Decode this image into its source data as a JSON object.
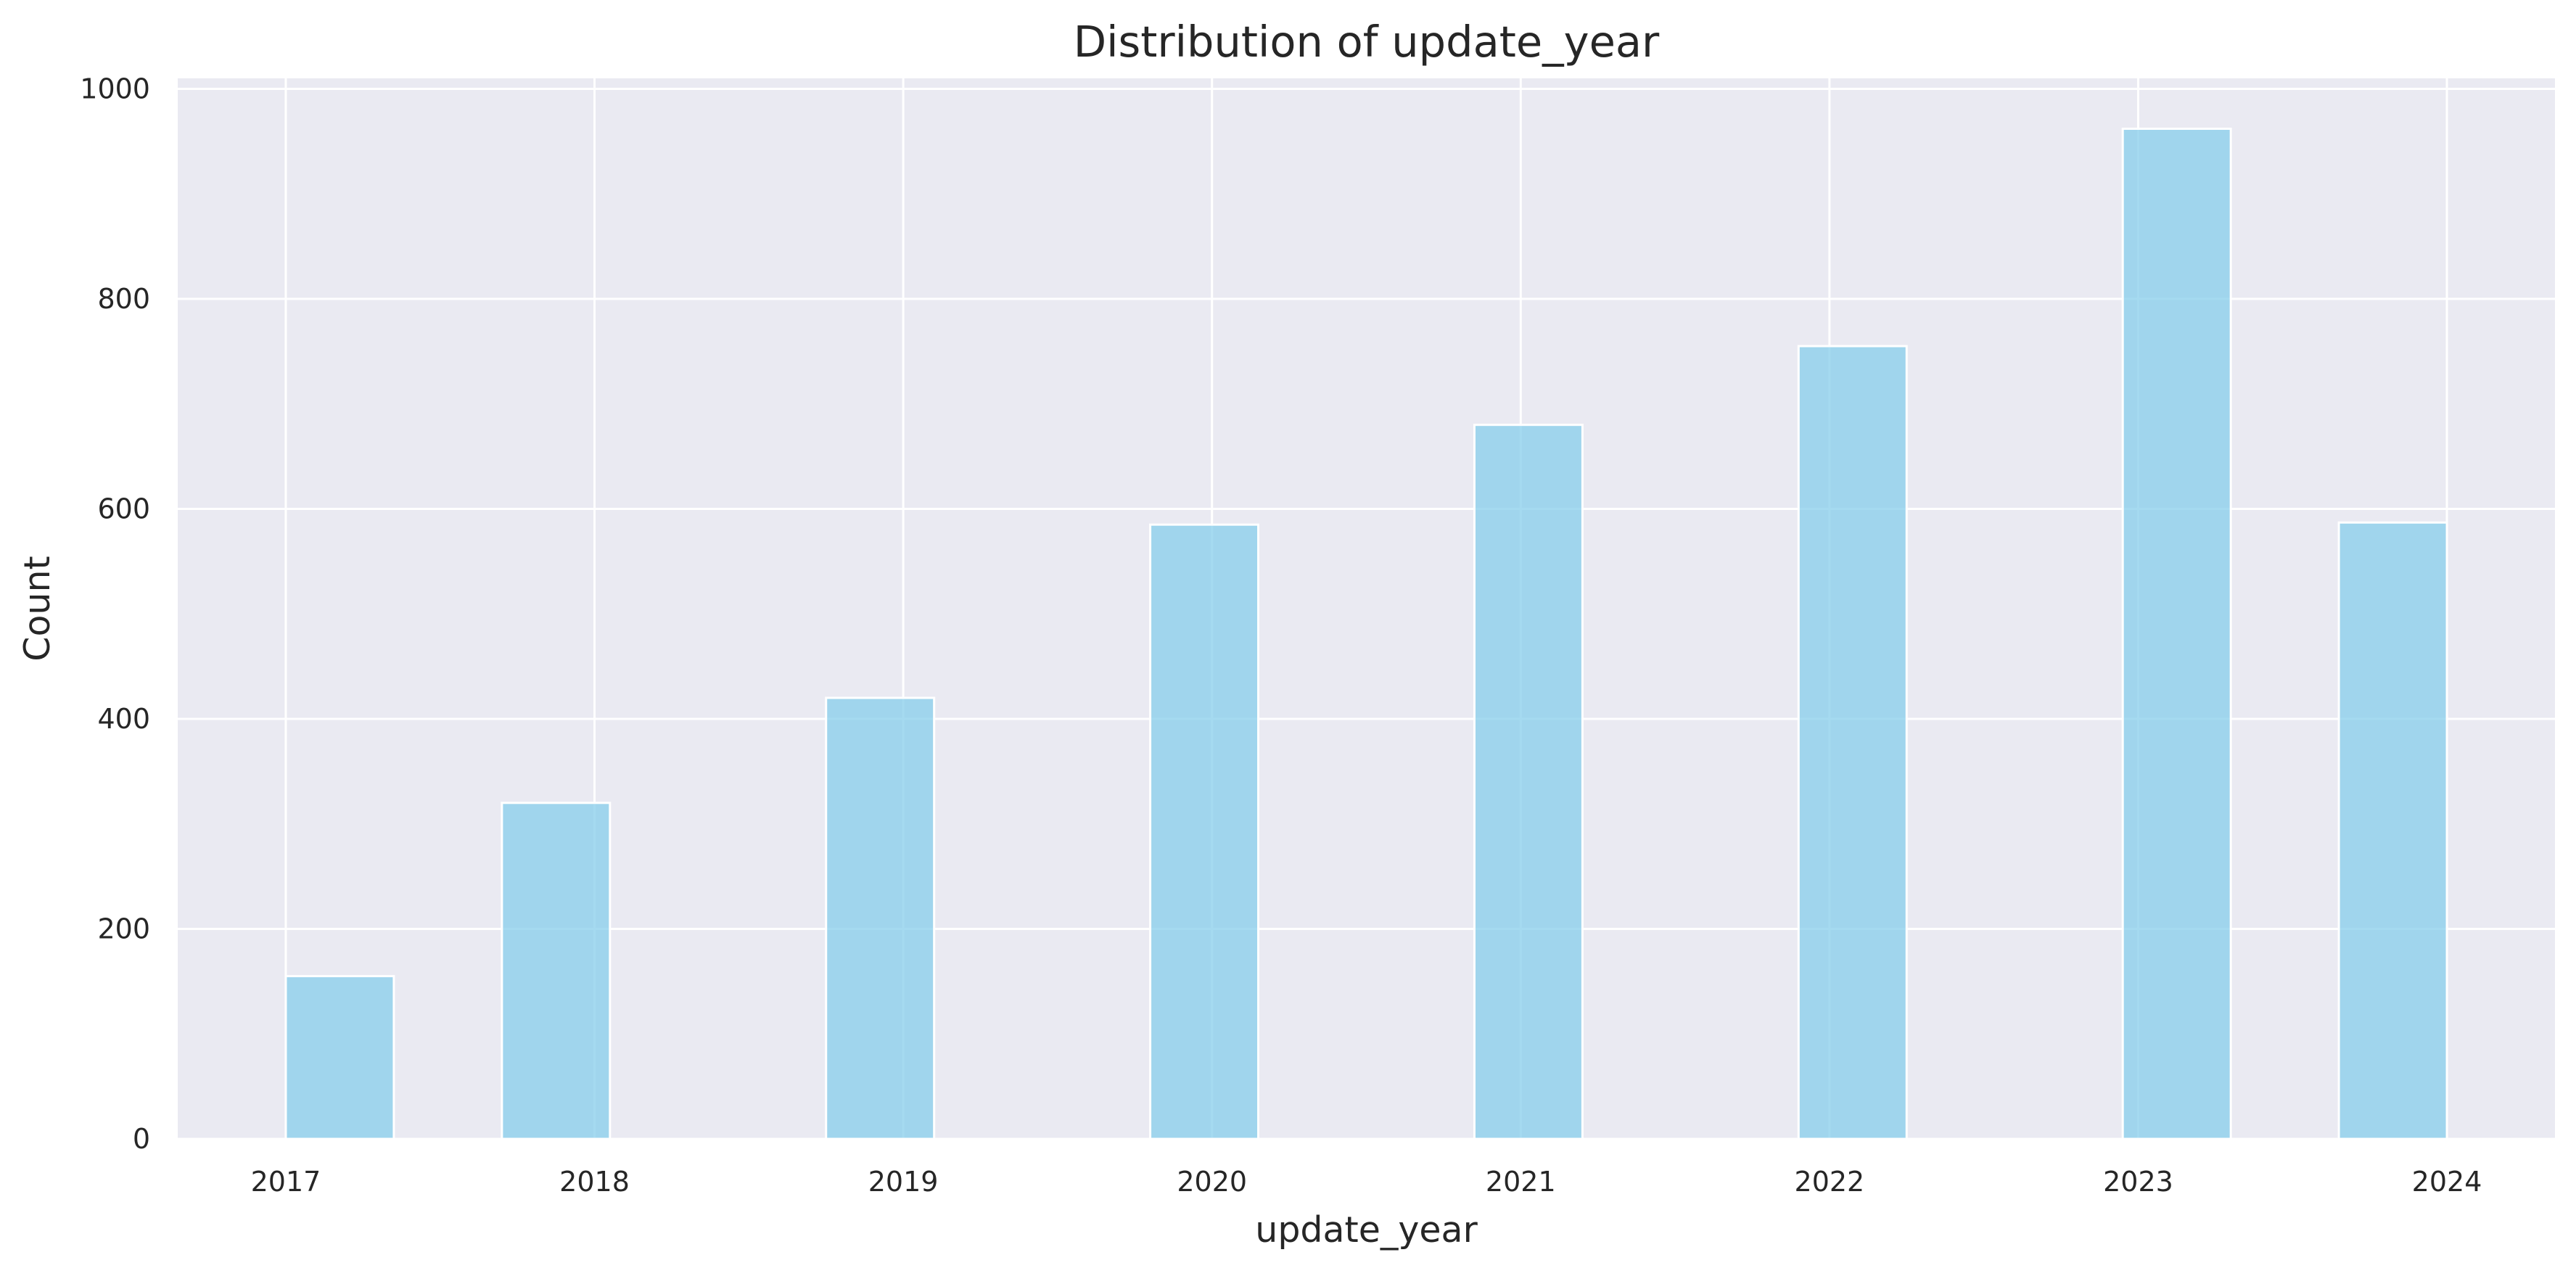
{
  "chart_data": {
    "type": "bar",
    "title": "Distribution of update_year",
    "xlabel": "update_year",
    "ylabel": "Count",
    "xlim": [
      2016.65,
      2024.35
    ],
    "ylim": [
      0,
      1010
    ],
    "x_ticks": [
      2017,
      2018,
      2019,
      2020,
      2021,
      2022,
      2023,
      2024
    ],
    "x_tick_labels": [
      "2017",
      "2018",
      "2019",
      "2020",
      "2021",
      "2022",
      "2023",
      "2024"
    ],
    "y_ticks": [
      0,
      200,
      400,
      600,
      800,
      1000
    ],
    "y_tick_labels": [
      "0",
      "200",
      "400",
      "600",
      "800",
      "1000"
    ],
    "bins": [
      {
        "start": 2017.0,
        "end": 2017.35,
        "value": 155
      },
      {
        "start": 2017.7,
        "end": 2018.05,
        "value": 320
      },
      {
        "start": 2018.75,
        "end": 2019.1,
        "value": 420
      },
      {
        "start": 2019.8,
        "end": 2020.15,
        "value": 585
      },
      {
        "start": 2020.85,
        "end": 2021.2,
        "value": 680
      },
      {
        "start": 2021.9,
        "end": 2022.25,
        "value": 755
      },
      {
        "start": 2022.95,
        "end": 2023.3,
        "value": 962
      },
      {
        "start": 2023.65,
        "end": 2024.0,
        "value": 587
      }
    ],
    "grid": true,
    "colors": {
      "bar": "#87ceeb",
      "background": "#eaeaf2",
      "grid": "#ffffff",
      "text": "#262626"
    }
  }
}
